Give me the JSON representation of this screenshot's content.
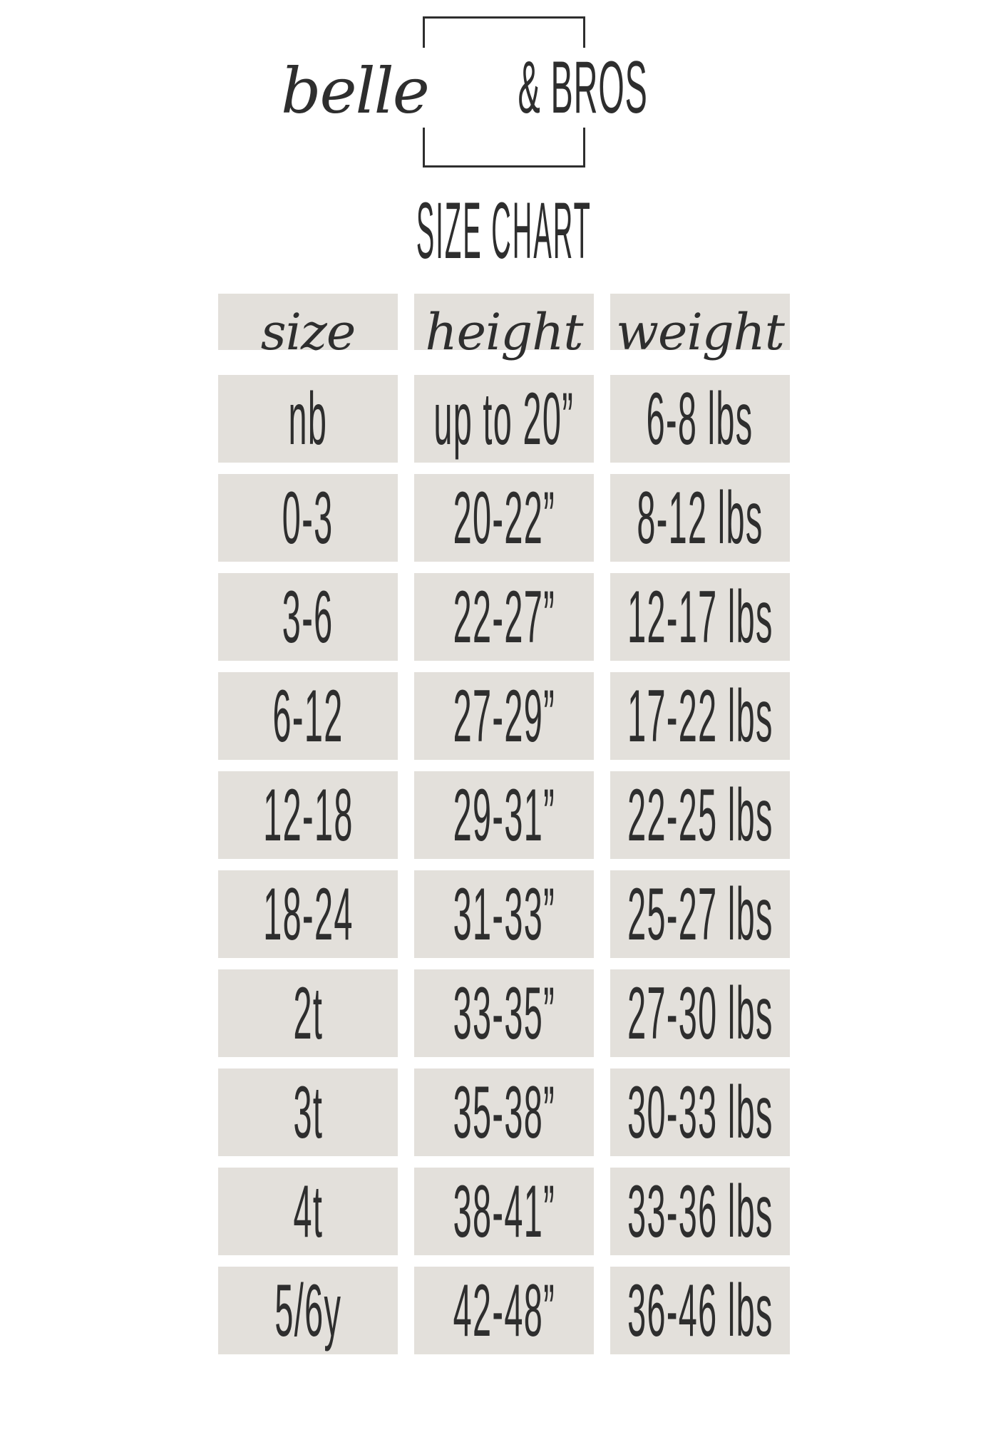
{
  "brand": {
    "script_name": "belle",
    "caps_name": "& BROS"
  },
  "title": "SIZE CHART",
  "table": {
    "headers": [
      {
        "key": "size",
        "label": "size"
      },
      {
        "key": "height",
        "label": "height"
      },
      {
        "key": "weight",
        "label": "weight"
      }
    ],
    "rows": [
      {
        "size": "nb",
        "height": "up to 20”",
        "weight": "6-8 lbs"
      },
      {
        "size": "0-3",
        "height": "20-22”",
        "weight": "8-12 lbs"
      },
      {
        "size": "3-6",
        "height": "22-27”",
        "weight": "12-17 lbs"
      },
      {
        "size": "6-12",
        "height": "27-29”",
        "weight": "17-22 lbs"
      },
      {
        "size": "12-18",
        "height": "29-31”",
        "weight": "22-25 lbs"
      },
      {
        "size": "18-24",
        "height": "31-33”",
        "weight": "25-27 lbs"
      },
      {
        "size": "2t",
        "height": "33-35”",
        "weight": "27-30 lbs"
      },
      {
        "size": "3t",
        "height": "35-38”",
        "weight": "30-33 lbs"
      },
      {
        "size": "4t",
        "height": "38-41”",
        "weight": "33-36 lbs"
      },
      {
        "size": "5/6y",
        "height": "42-48”",
        "weight": "36-46 lbs"
      }
    ]
  },
  "chart_data": {
    "type": "table",
    "title": "SIZE CHART",
    "columns": [
      "size",
      "height",
      "weight"
    ],
    "rows": [
      [
        "nb",
        "up to 20”",
        "6-8 lbs"
      ],
      [
        "0-3",
        "20-22”",
        "8-12 lbs"
      ],
      [
        "3-6",
        "22-27”",
        "12-17 lbs"
      ],
      [
        "6-12",
        "27-29”",
        "17-22 lbs"
      ],
      [
        "12-18",
        "29-31”",
        "22-25 lbs"
      ],
      [
        "18-24",
        "31-33”",
        "25-27 lbs"
      ],
      [
        "2t",
        "33-35”",
        "27-30 lbs"
      ],
      [
        "3t",
        "35-38”",
        "30-33 lbs"
      ],
      [
        "4t",
        "38-41”",
        "33-36 lbs"
      ],
      [
        "5/6y",
        "42-48”",
        "36-46 lbs"
      ]
    ]
  },
  "colors": {
    "ink": "#2e2e2e",
    "cell_bg": "#e3e0db",
    "page_bg": "#ffffff"
  }
}
